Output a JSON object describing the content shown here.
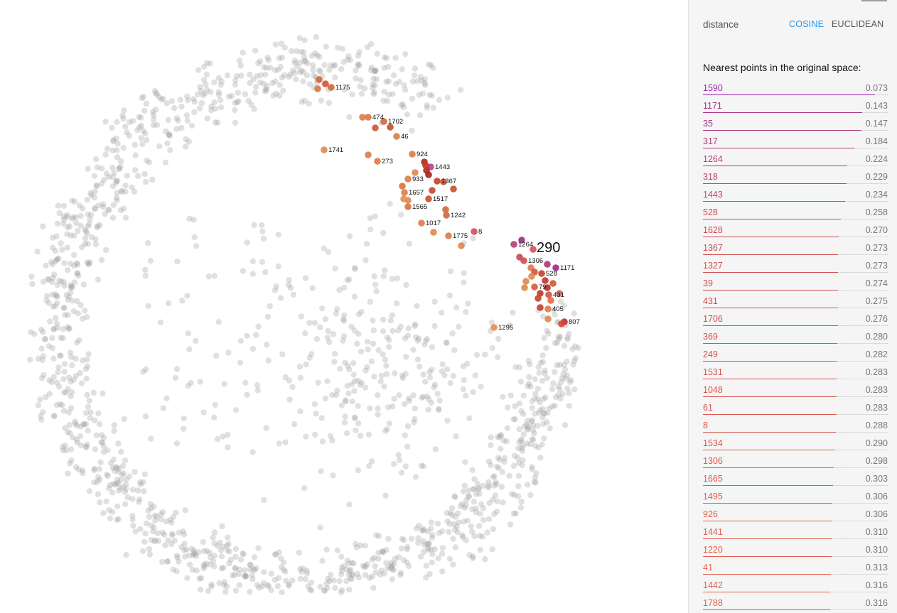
{
  "projection": {
    "background_point_color": "#9e9e9e",
    "selected": {
      "id": "290"
    },
    "labeled_neighbors": [
      "1175",
      "474",
      "1702",
      "46",
      "1741",
      "273",
      "924",
      "1443",
      "933",
      "1367",
      "1657",
      "1517",
      "1565",
      "1242",
      "1017",
      "1775",
      "8",
      "1264",
      "1306",
      "1171",
      "528",
      "79",
      "431",
      "405",
      "807",
      "1295"
    ]
  },
  "panel": {
    "distance_label": "distance",
    "metrics": [
      {
        "label": "COSINE",
        "active": true,
        "color": "#2196f3"
      },
      {
        "label": "EUCLIDEAN",
        "active": false,
        "color": "#555555"
      }
    ],
    "neighbors_title": "Nearest points in the original space:",
    "neighbors": [
      {
        "id": "1590",
        "value": "0.073",
        "color": "#9c27b0"
      },
      {
        "id": "1171",
        "value": "0.143",
        "color": "#a83584"
      },
      {
        "id": "35",
        "value": "0.147",
        "color": "#a83584"
      },
      {
        "id": "317",
        "value": "0.184",
        "color": "#b33d79"
      },
      {
        "id": "1264",
        "value": "0.224",
        "color": "#b53f76"
      },
      {
        "id": "318",
        "value": "0.229",
        "color": "#bf4666"
      },
      {
        "id": "1443",
        "value": "0.234",
        "color": "#c2485f"
      },
      {
        "id": "528",
        "value": "0.258",
        "color": "#c94b57"
      },
      {
        "id": "1628",
        "value": "0.270",
        "color": "#cc4d54"
      },
      {
        "id": "1367",
        "value": "0.273",
        "color": "#cf4f52"
      },
      {
        "id": "1327",
        "value": "0.273",
        "color": "#cf4f52"
      },
      {
        "id": "39",
        "value": "0.274",
        "color": "#d05050"
      },
      {
        "id": "431",
        "value": "0.275",
        "color": "#d05050"
      },
      {
        "id": "1706",
        "value": "0.276",
        "color": "#d15150"
      },
      {
        "id": "369",
        "value": "0.280",
        "color": "#d45350"
      },
      {
        "id": "249",
        "value": "0.282",
        "color": "#d55450"
      },
      {
        "id": "1531",
        "value": "0.283",
        "color": "#d65550"
      },
      {
        "id": "1048",
        "value": "0.283",
        "color": "#d65550"
      },
      {
        "id": "61",
        "value": "0.283",
        "color": "#d65550"
      },
      {
        "id": "8",
        "value": "0.288",
        "color": "#d85650"
      },
      {
        "id": "1534",
        "value": "0.290",
        "color": "#d95750"
      },
      {
        "id": "1306",
        "value": "0.298",
        "color": "#dc5a50"
      },
      {
        "id": "1665",
        "value": "0.303",
        "color": "#de5c50"
      },
      {
        "id": "1495",
        "value": "0.306",
        "color": "#df5d50"
      },
      {
        "id": "926",
        "value": "0.306",
        "color": "#df5d50"
      },
      {
        "id": "1441",
        "value": "0.310",
        "color": "#e05e50"
      },
      {
        "id": "1220",
        "value": "0.310",
        "color": "#e05e50"
      },
      {
        "id": "41",
        "value": "0.313",
        "color": "#e15f50"
      },
      {
        "id": "1442",
        "value": "0.316",
        "color": "#e26050"
      },
      {
        "id": "1788",
        "value": "0.316",
        "color": "#e26050"
      }
    ]
  }
}
